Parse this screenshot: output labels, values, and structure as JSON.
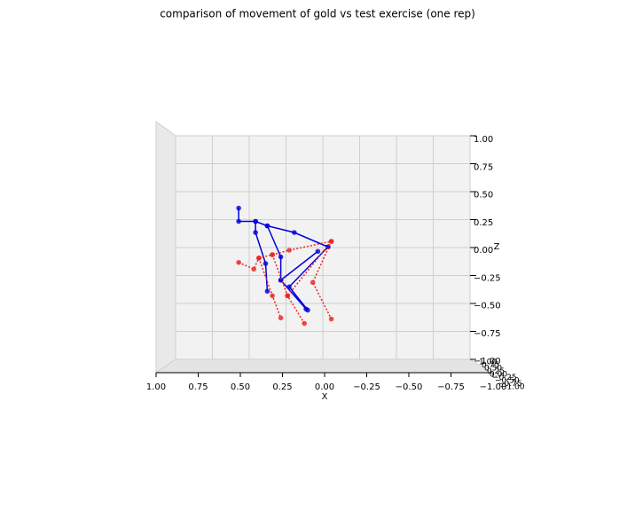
{
  "chart_data": {
    "type": "line3d",
    "title": "comparison of movement of gold vs test exercise (one rep)",
    "xlabel": "X",
    "zlabel": "Z",
    "xlim": [
      1,
      -1
    ],
    "ylim": [
      1,
      -1
    ],
    "zlim": [
      -1,
      1
    ],
    "xticks": [
      {
        "value": 1,
        "label": "1.00"
      },
      {
        "value": 0.75,
        "label": "0.75"
      },
      {
        "value": 0.5,
        "label": "0.50"
      },
      {
        "value": 0.25,
        "label": "0.25"
      },
      {
        "value": 0,
        "label": "0.00"
      },
      {
        "value": -0.25,
        "label": "−0.25"
      },
      {
        "value": -0.5,
        "label": "−0.50"
      },
      {
        "value": -0.75,
        "label": "−0.75"
      },
      {
        "value": -1,
        "label": "−1.00"
      }
    ],
    "yticks": [
      {
        "value": 1,
        "label": "1.00"
      },
      {
        "value": 0.75,
        "label": "0.75"
      },
      {
        "value": 0.5,
        "label": "0.50"
      },
      {
        "value": 0.25,
        "label": "0.25"
      },
      {
        "value": 0,
        "label": "0.00"
      },
      {
        "value": -0.25,
        "label": "−0.25"
      },
      {
        "value": -0.5,
        "label": "−0.50"
      },
      {
        "value": -0.75,
        "label": "−0.75"
      },
      {
        "value": -1,
        "label": "−1.00"
      }
    ],
    "zticks": [
      {
        "value": 1,
        "label": "1.00"
      },
      {
        "value": 0.75,
        "label": "0.75"
      },
      {
        "value": 0.5,
        "label": "0.50"
      },
      {
        "value": 0.25,
        "label": "0.25"
      },
      {
        "value": 0,
        "label": "0.00"
      },
      {
        "value": -0.25,
        "label": "−0.25"
      },
      {
        "value": -0.5,
        "label": "−0.50"
      },
      {
        "value": -0.75,
        "label": "−0.75"
      },
      {
        "value": -1,
        "label": "−1.00"
      }
    ],
    "grid": true,
    "series": [
      {
        "color": "#0000dd",
        "dash": false,
        "x": [
          0.51,
          0.51,
          0.41,
          0.34,
          0.18,
          -0.02,
          null,
          0.41,
          0.41,
          0.35,
          0.34,
          null,
          0.34,
          0.26,
          0.26,
          0.11,
          null,
          -0.02,
          0.21,
          0.1,
          null,
          0.04,
          0.26
        ],
        "z": [
          0.38,
          0.26,
          0.26,
          0.22,
          0.16,
          0.03,
          null,
          0.26,
          0.16,
          -0.12,
          -0.37,
          null,
          0.22,
          -0.06,
          -0.27,
          -0.53,
          null,
          0.03,
          -0.33,
          -0.54,
          null,
          -0.01,
          -0.27
        ]
      },
      {
        "color": "#ee2222",
        "dash": true,
        "x": [
          0.51,
          0.42,
          0.39,
          0.31,
          0.21,
          -0.04,
          0.07,
          -0.04,
          null,
          0.39,
          0.31,
          0.26,
          null,
          0.31,
          0.22,
          0.12,
          null,
          -0.04,
          0.22
        ],
        "z": [
          -0.11,
          -0.17,
          -0.07,
          -0.04,
          0,
          0.08,
          -0.29,
          -0.62,
          null,
          -0.07,
          -0.41,
          -0.61,
          null,
          -0.04,
          -0.41,
          -0.66,
          null,
          0.08,
          -0.41
        ]
      }
    ]
  }
}
